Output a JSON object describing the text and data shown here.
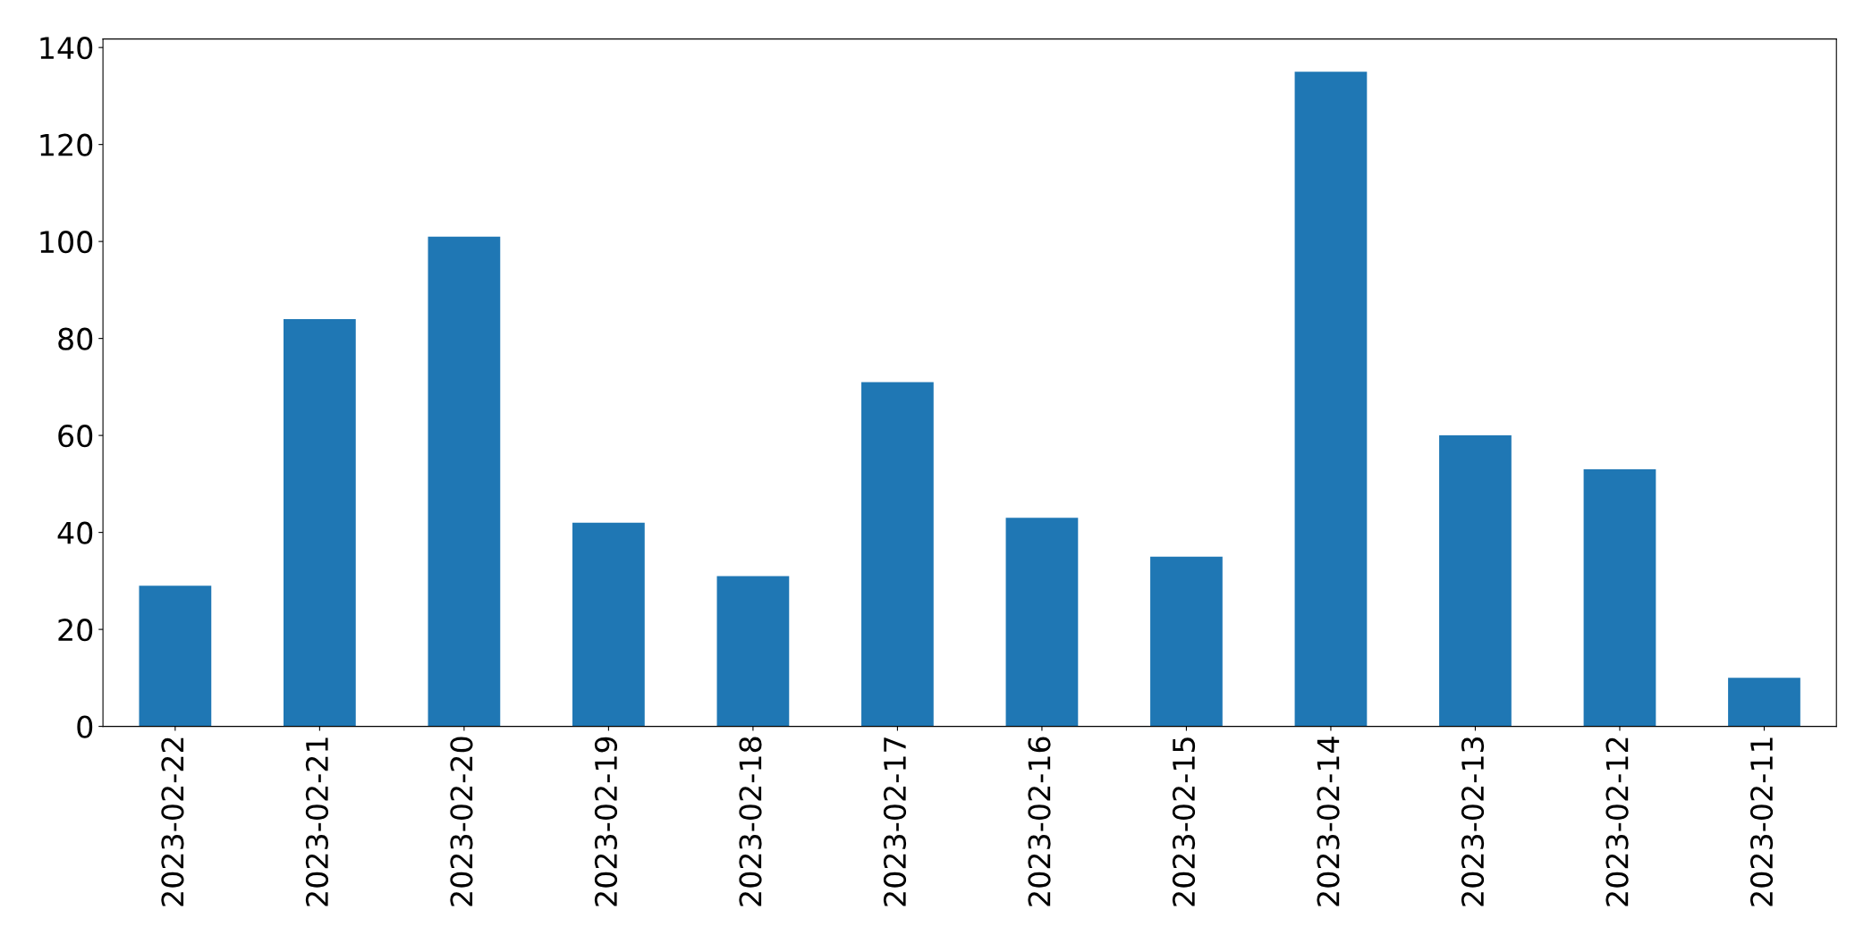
{
  "chart_data": {
    "type": "bar",
    "categories": [
      "2023-02-22",
      "2023-02-21",
      "2023-02-20",
      "2023-02-19",
      "2023-02-18",
      "2023-02-17",
      "2023-02-16",
      "2023-02-15",
      "2023-02-14",
      "2023-02-13",
      "2023-02-12",
      "2023-02-11"
    ],
    "values": [
      29,
      84,
      101,
      42,
      31,
      71,
      43,
      35,
      135,
      60,
      53,
      10
    ],
    "color": "#1f77b4",
    "ylim": [
      0,
      141.75
    ],
    "yticks": [
      0,
      20,
      40,
      60,
      80,
      100,
      120,
      140
    ],
    "grid": false
  }
}
